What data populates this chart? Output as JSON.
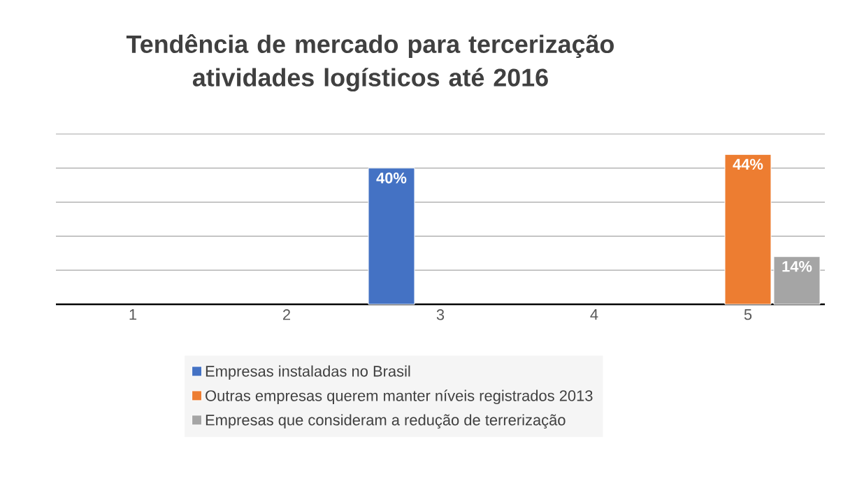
{
  "chart_data": {
    "type": "bar",
    "title": "Tendência de mercado para tercerização atividades logísticos até 2016",
    "categories": [
      "1",
      "2",
      "3",
      "4",
      "5"
    ],
    "series": [
      {
        "name": "Empresas instaladas no Brasil",
        "color": "#4472c4",
        "values": [
          null,
          null,
          40,
          null,
          null
        ],
        "value_labels": [
          null,
          null,
          "40%",
          null,
          null
        ]
      },
      {
        "name": "Outras empresas querem manter níveis registrados 2013",
        "color": "#ed7d31",
        "values": [
          null,
          null,
          null,
          null,
          44
        ],
        "value_labels": [
          null,
          null,
          null,
          null,
          "44%"
        ]
      },
      {
        "name": "Empresas que consideram a redução de terrerização",
        "color": "#a5a5a5",
        "values": [
          null,
          null,
          null,
          null,
          14
        ],
        "value_labels": [
          null,
          null,
          null,
          null,
          "14%"
        ]
      }
    ],
    "ylim": [
      0,
      50
    ],
    "yticks": [
      {
        "value": 0,
        "label": null
      },
      {
        "value": 10,
        "label": null
      },
      {
        "value": 20,
        "label": null
      },
      {
        "value": 30,
        "label": null
      },
      {
        "value": 40,
        "label": null
      },
      {
        "value": 50,
        "label": null
      }
    ],
    "grid": "y",
    "legend": "bottom",
    "tick_labels": "x"
  }
}
